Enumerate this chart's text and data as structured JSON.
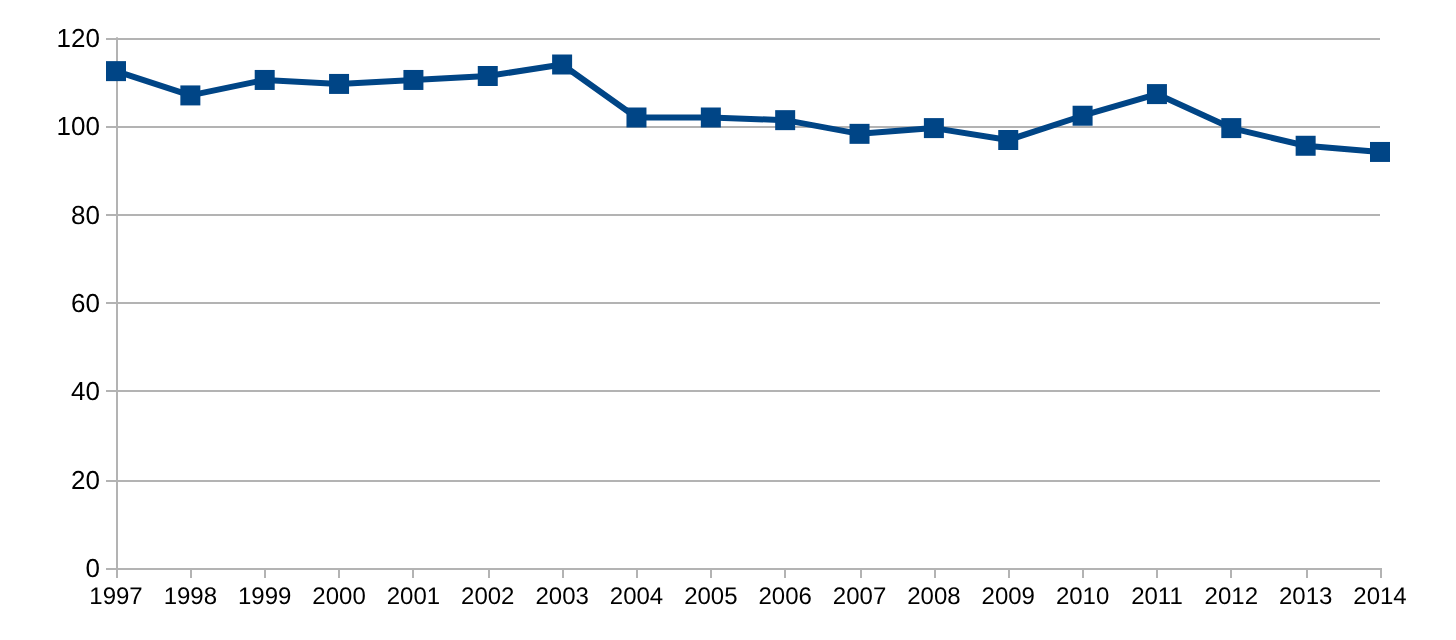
{
  "chart_data": {
    "type": "line",
    "categories": [
      "1997",
      "1998",
      "1999",
      "2000",
      "2001",
      "2002",
      "2003",
      "2004",
      "2005",
      "2006",
      "2007",
      "2008",
      "2009",
      "2010",
      "2011",
      "2012",
      "2013",
      "2014"
    ],
    "series": [
      {
        "color": "#004586",
        "values": [
          112.5,
          107,
          110.5,
          109.6,
          110.5,
          111.4,
          114,
          102,
          102,
          101.4,
          98.3,
          99.6,
          96.9,
          102.4,
          107.3,
          99.6,
          95.6,
          94.2
        ]
      }
    ],
    "ylim": [
      0,
      120
    ],
    "yticks": [
      0,
      20,
      40,
      60,
      80,
      100,
      120
    ],
    "grid": "y",
    "marker": "square",
    "line_style": "solid"
  }
}
